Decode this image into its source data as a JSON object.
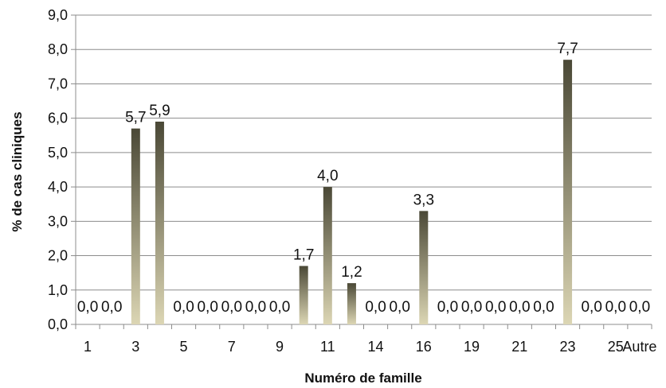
{
  "chart_data": {
    "type": "bar",
    "title": "",
    "xlabel": "Numéro de famille",
    "ylabel": "% de cas cliniques",
    "ylim": [
      0,
      9
    ],
    "ytick_step": 1,
    "ytick_labels": [
      "0,0",
      "1,0",
      "2,0",
      "3,0",
      "4,0",
      "5,0",
      "6,0",
      "7,0",
      "8,0",
      "9,0"
    ],
    "grid": "horizontal",
    "categories": [
      "1",
      "2",
      "3",
      "4",
      "5",
      "6",
      "7",
      "8",
      "9",
      "10",
      "11",
      "12",
      "14",
      "15",
      "16",
      "17",
      "19",
      "20",
      "21",
      "22",
      "23",
      "24",
      "25",
      "Autre"
    ],
    "values": [
      0.0,
      0.0,
      5.7,
      5.9,
      0.0,
      0.0,
      0.0,
      0.0,
      0.0,
      1.7,
      4.0,
      1.2,
      0.0,
      0.0,
      3.3,
      0.0,
      0.0,
      0.0,
      0.0,
      0.0,
      7.7,
      0.0,
      0.0,
      0.0
    ],
    "data_labels": [
      "0,0",
      "0,0",
      "5,7",
      "5,9",
      "0,0",
      "0,0",
      "0,0",
      "0,0",
      "0,0",
      "1,7",
      "4,0",
      "1,2",
      "0,0",
      "0,0",
      "3,3",
      "0,0",
      "0,0",
      "0,0",
      "0,0",
      "0,0",
      "7,7",
      "0,0",
      "0,0",
      "0,0"
    ],
    "x_tick_labels": [
      "1",
      "",
      "3",
      "",
      "5",
      "",
      "7",
      "",
      "9",
      "",
      "11",
      "",
      "14",
      "",
      "16",
      "",
      "19",
      "",
      "21",
      "",
      "23",
      "",
      "25",
      "Autre"
    ],
    "bar_gradient": [
      "#4a4836",
      "#dcd6b4"
    ]
  }
}
